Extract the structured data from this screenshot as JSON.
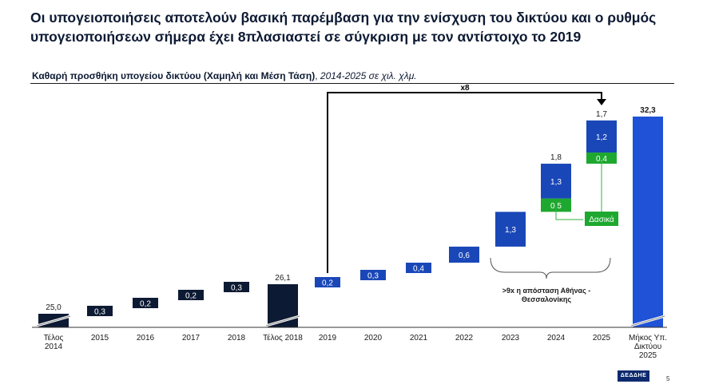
{
  "header": {
    "title": "Οι υπογειοποιήσεις αποτελούν βασική παρέμβαση για την ενίσχυση του δικτύου και ο ρυθμός υπογειοποιήσεων σήμερα έχει 8πλασιαστεί σε σύγκριση με τον αντίστοιχο το 2019",
    "subtitle_bold": "Καθαρή προσθήκη υπογείου δικτύου (Χαμηλή και Μέση Τάση)",
    "subtitle_sep": ", ",
    "subtitle_italic": "2014-2025 σε χιλ. χλμ."
  },
  "footer": {
    "logo_text": "ΔΕΔΔΗΕ",
    "page_number": "5"
  },
  "colors": {
    "dark_navy": "#0d1a33",
    "blue": "#1a47b8",
    "total_blue": "#1f52d6",
    "green": "#1ea82f",
    "connector_green": "#2fb33d",
    "text_dark": "#1a1a1a"
  },
  "chart_data": {
    "type": "bar",
    "subtype": "waterfall",
    "categories": [
      "Τέλος\n2014",
      "2015",
      "2016",
      "2017",
      "2018",
      "Τέλος 2018",
      "2019",
      "2020",
      "2021",
      "2022",
      "2023",
      "2024",
      "2025",
      "Μήκος Υπ.\nΔικτύου\n2025"
    ],
    "bars": [
      {
        "category": "Τέλος\n2014",
        "kind": "total",
        "value": 25.0,
        "label": "25,0",
        "style": "dark"
      },
      {
        "category": "2015",
        "kind": "increment",
        "segments": [
          {
            "value": 0.3,
            "label": "0,3",
            "style": "dark"
          }
        ]
      },
      {
        "category": "2016",
        "kind": "increment",
        "segments": [
          {
            "value": 0.2,
            "label": "0,2",
            "style": "dark"
          }
        ]
      },
      {
        "category": "2017",
        "kind": "increment",
        "segments": [
          {
            "value": 0.2,
            "label": "0,2",
            "style": "dark"
          }
        ]
      },
      {
        "category": "2018",
        "kind": "increment",
        "segments": [
          {
            "value": 0.3,
            "label": "0,3",
            "style": "dark"
          }
        ]
      },
      {
        "category": "Τέλος 2018",
        "kind": "total",
        "value": 26.1,
        "label": "26,1",
        "style": "dark"
      },
      {
        "category": "2019",
        "kind": "increment",
        "segments": [
          {
            "value": 0.2,
            "label": "0,2",
            "style": "blue"
          }
        ]
      },
      {
        "category": "2020",
        "kind": "increment",
        "segments": [
          {
            "value": 0.3,
            "label": "0,3",
            "style": "blue"
          }
        ]
      },
      {
        "category": "2021",
        "kind": "increment",
        "segments": [
          {
            "value": 0.4,
            "label": "0,4",
            "style": "blue"
          }
        ]
      },
      {
        "category": "2022",
        "kind": "increment",
        "segments": [
          {
            "value": 0.6,
            "label": "0,6",
            "style": "blue"
          }
        ]
      },
      {
        "category": "2023",
        "kind": "increment",
        "segments": [
          {
            "value": 1.3,
            "label": "1,3",
            "style": "blue"
          }
        ]
      },
      {
        "category": "2024",
        "kind": "increment",
        "total_label": "1,8",
        "segments": [
          {
            "value": 0.5,
            "label": "0,5",
            "style": "green"
          },
          {
            "value": 1.3,
            "label": "1,3",
            "style": "blue"
          }
        ]
      },
      {
        "category": "2025",
        "kind": "increment",
        "total_label": "1,7",
        "segments": [
          {
            "value": 0.4,
            "label": "0,4",
            "style": "green"
          },
          {
            "value": 1.2,
            "label": "1,2",
            "style": "blue"
          }
        ]
      },
      {
        "category": "Μήκος Υπ.\nΔικτύου\n2025",
        "kind": "total",
        "value": 32.3,
        "label": "32,3",
        "style": "total"
      }
    ],
    "annotations": {
      "multiplier": "x8",
      "forest_label": "Δασικά",
      "brace_label": ">9x η απόσταση Αθήνας -\nΘεσσαλονίκης"
    },
    "axis_break": true,
    "grid": false,
    "legend": "none"
  }
}
